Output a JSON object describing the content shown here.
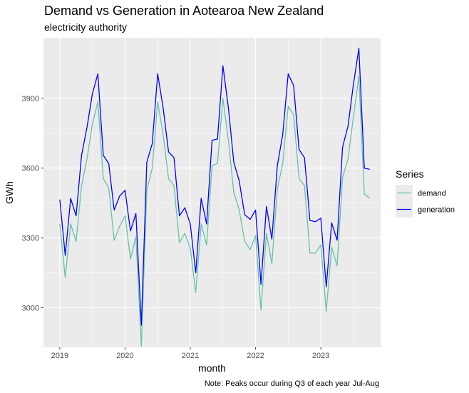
{
  "chart_data": {
    "type": "line",
    "title": "Demand vs Generation in Aotearoa New Zealand",
    "subtitle": "electricity authority",
    "xlabel": "month",
    "ylabel": "GWh",
    "caption": "Note: Peaks occur during Q3 of each year Jul-Aug",
    "legend_title": "Series",
    "legend_position": "right",
    "grid": true,
    "x_ticks": [
      "2019",
      "2020",
      "2021",
      "2022",
      "2023"
    ],
    "y_ticks": [
      "3000",
      "3300",
      "3600",
      "3900"
    ],
    "y_tick_values": [
      3000,
      3300,
      3600,
      3900
    ],
    "ylim": [
      2830,
      4160
    ],
    "xlim": [
      "2018-10",
      "2023-12"
    ],
    "colors": {
      "demand": "#66c2a5",
      "generation": "#0000ff",
      "panel": "#ebebeb",
      "grid": "#ffffff"
    },
    "x": [
      "2019-01",
      "2019-02",
      "2019-03",
      "2019-04",
      "2019-05",
      "2019-06",
      "2019-07",
      "2019-08",
      "2019-09",
      "2019-10",
      "2019-11",
      "2019-12",
      "2020-01",
      "2020-02",
      "2020-03",
      "2020-04",
      "2020-05",
      "2020-06",
      "2020-07",
      "2020-08",
      "2020-09",
      "2020-10",
      "2020-11",
      "2020-12",
      "2021-01",
      "2021-02",
      "2021-03",
      "2021-04",
      "2021-05",
      "2021-06",
      "2021-07",
      "2021-08",
      "2021-09",
      "2021-10",
      "2021-11",
      "2021-12",
      "2022-01",
      "2022-02",
      "2022-03",
      "2022-04",
      "2022-05",
      "2022-06",
      "2022-07",
      "2022-08",
      "2022-09",
      "2022-10",
      "2022-11",
      "2022-12",
      "2023-01",
      "2023-02",
      "2023-03",
      "2023-04",
      "2023-05",
      "2023-06",
      "2023-07",
      "2023-08",
      "2023-09",
      "2023-10"
    ],
    "series": [
      {
        "name": "demand",
        "values": [
          3360,
          3130,
          3360,
          3285,
          3525,
          3640,
          3790,
          3885,
          3555,
          3515,
          3290,
          3350,
          3395,
          3210,
          3305,
          2835,
          3505,
          3600,
          3885,
          3745,
          3555,
          3525,
          3280,
          3320,
          3255,
          3065,
          3360,
          3270,
          3610,
          3620,
          3900,
          3720,
          3495,
          3420,
          3285,
          3250,
          3310,
          2990,
          3320,
          3190,
          3510,
          3620,
          3865,
          3830,
          3555,
          3525,
          3235,
          3235,
          3270,
          2985,
          3260,
          3180,
          3560,
          3640,
          3820,
          3995,
          3490,
          3470
        ]
      },
      {
        "name": "generation",
        "values": [
          3465,
          3225,
          3470,
          3395,
          3655,
          3775,
          3920,
          4005,
          3655,
          3620,
          3420,
          3480,
          3505,
          3330,
          3405,
          2925,
          3625,
          3705,
          4005,
          3860,
          3670,
          3645,
          3395,
          3430,
          3360,
          3150,
          3470,
          3360,
          3720,
          3725,
          4040,
          3860,
          3625,
          3545,
          3400,
          3380,
          3420,
          3100,
          3435,
          3295,
          3610,
          3745,
          4005,
          3955,
          3680,
          3645,
          3375,
          3370,
          3385,
          3090,
          3365,
          3290,
          3690,
          3780,
          3960,
          4115,
          3600,
          3595
        ]
      }
    ]
  }
}
